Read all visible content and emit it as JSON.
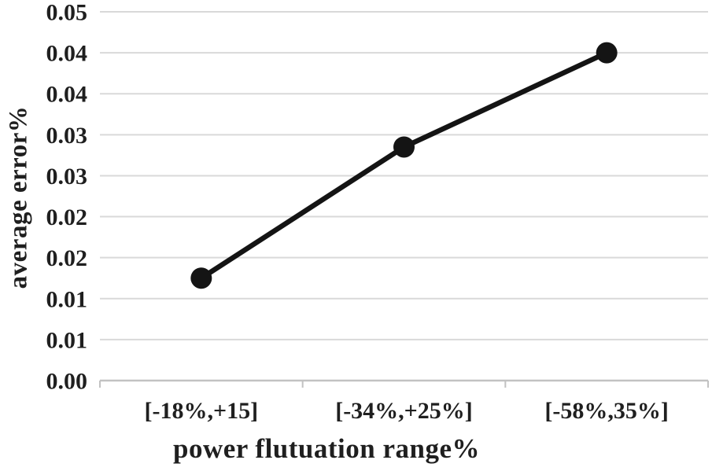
{
  "chart_data": {
    "type": "line",
    "title": "",
    "xlabel": "power flutuation range%",
    "ylabel": "average error%",
    "categories": [
      "[-18%,+15]",
      "[-34%,+25%]",
      "[-58%,35%]"
    ],
    "series": [
      {
        "name": "average error%",
        "values": [
          0.0125,
          0.0285,
          0.04
        ]
      }
    ],
    "ylim": [
      0,
      0.045
    ],
    "y_tick_interval": 0.005,
    "y_tick_labels_bottom_to_top": [
      "0.00",
      "0.01",
      "0.01",
      "0.02",
      "0.02",
      "0.03",
      "0.03",
      "0.04",
      "0.04",
      "0.05"
    ],
    "grid": true,
    "legend": "none",
    "marker": "filled-circle",
    "colors": {
      "background": "#ffffff",
      "line": "#141414",
      "marker": "#141414",
      "gridline": "#d9d9d9",
      "axis_line": "#c2c2c2",
      "tick": "#c2c2c2",
      "text": "#1f1f1f"
    }
  }
}
